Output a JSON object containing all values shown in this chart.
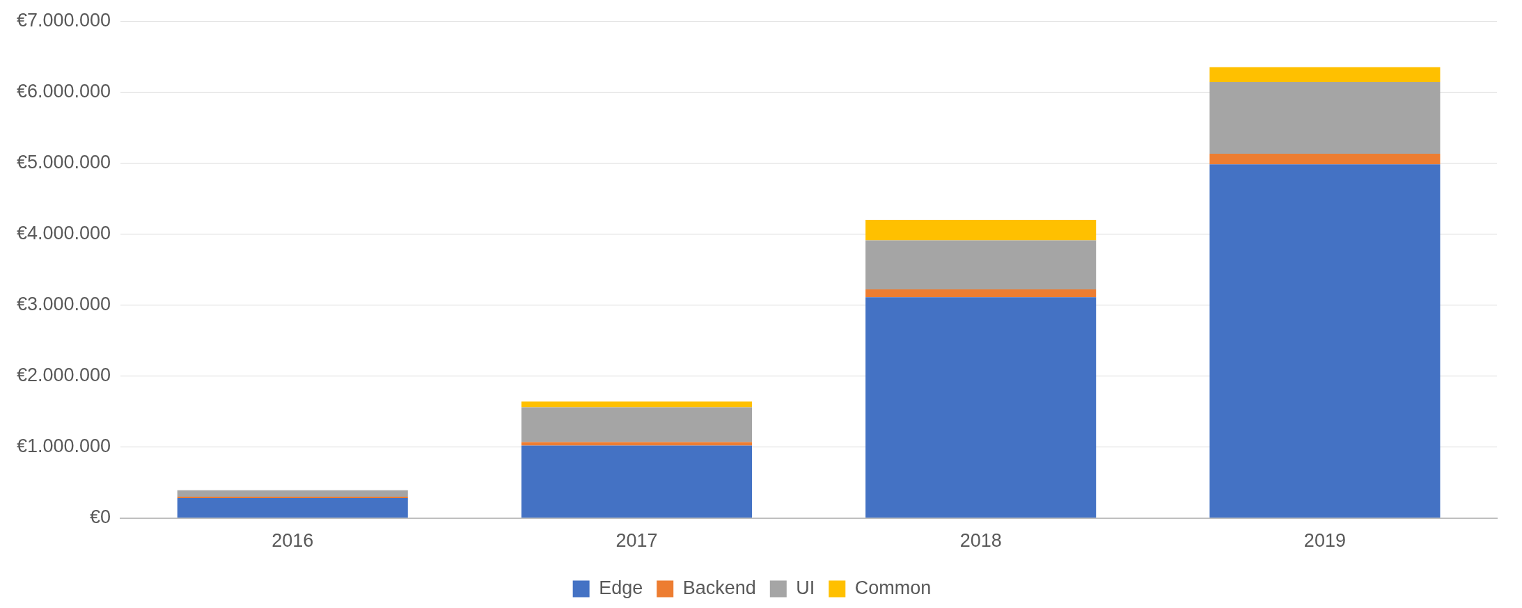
{
  "chart_data": {
    "type": "bar",
    "stacked": true,
    "categories": [
      "2016",
      "2017",
      "2018",
      "2019"
    ],
    "series": [
      {
        "name": "Edge",
        "color": "#4472c4",
        "values": [
          280000,
          1020000,
          3110000,
          4980000
        ]
      },
      {
        "name": "Backend",
        "color": "#ed7d31",
        "values": [
          20000,
          50000,
          110000,
          150000
        ]
      },
      {
        "name": "UI",
        "color": "#a5a5a5",
        "values": [
          90000,
          490000,
          690000,
          1010000
        ]
      },
      {
        "name": "Common",
        "color": "#ffc000",
        "values": [
          0,
          80000,
          290000,
          210000
        ]
      }
    ],
    "ylim": [
      0,
      7000000
    ],
    "yticks": [
      {
        "value": 0,
        "label": "€0"
      },
      {
        "value": 1000000,
        "label": "€1.000.000"
      },
      {
        "value": 2000000,
        "label": "€2.000.000"
      },
      {
        "value": 3000000,
        "label": "€3.000.000"
      },
      {
        "value": 4000000,
        "label": "€4.000.000"
      },
      {
        "value": 5000000,
        "label": "€5.000.000"
      },
      {
        "value": 6000000,
        "label": "€6.000.000"
      },
      {
        "value": 7000000,
        "label": "€7.000.000"
      }
    ],
    "grid": "y",
    "legend": "bottom"
  }
}
